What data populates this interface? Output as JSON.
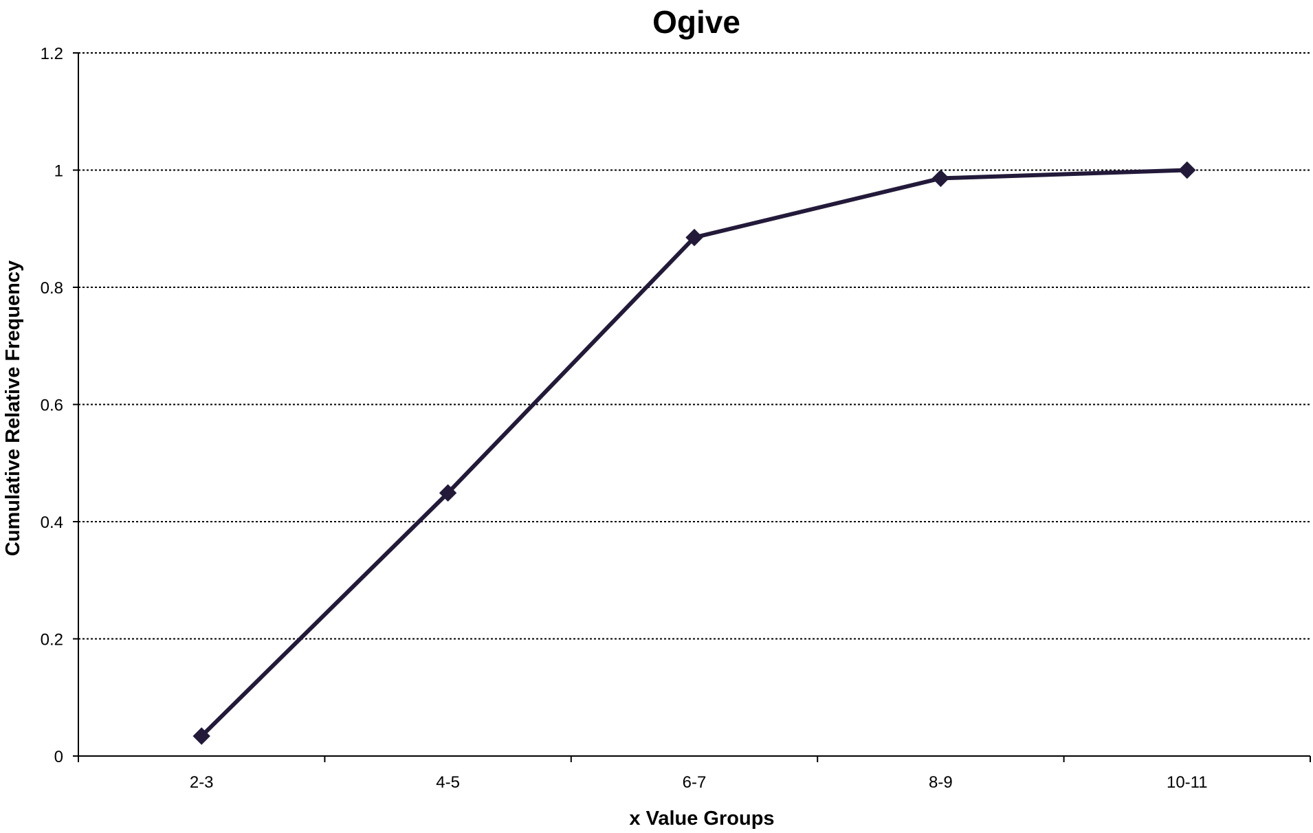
{
  "chart_data": {
    "type": "line",
    "title": "Ogive",
    "xlabel": "x Value Groups",
    "ylabel": "Cumulative Relative Frequency",
    "categories": [
      "2-3",
      "4-5",
      "6-7",
      "8-9",
      "10-11"
    ],
    "series": [
      {
        "values": [
          0.034,
          0.449,
          0.885,
          0.986,
          1.0
        ],
        "color": "#231a3a",
        "marker": "diamond"
      }
    ],
    "ylim": [
      0,
      1.2
    ],
    "yticks": [
      0,
      0.2,
      0.4,
      0.6,
      0.8,
      1,
      1.2
    ],
    "grid": true,
    "gridline_style": "dotted",
    "legend": "none"
  }
}
